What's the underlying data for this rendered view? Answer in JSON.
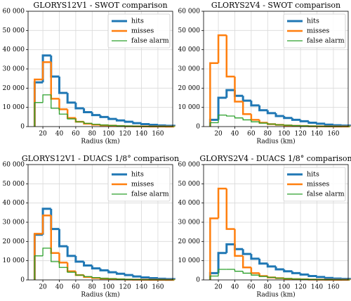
{
  "chart_data": [
    {
      "type": "histogram",
      "title": "GLORYS12V1 - SWOT comparison",
      "xlabel": "Radius (km)",
      "bins": [
        10,
        20,
        30,
        40,
        50,
        60,
        70,
        80,
        90,
        100,
        110,
        120,
        130,
        140,
        150,
        160,
        170,
        180
      ],
      "series": [
        {
          "name": "hits",
          "color": "#1f77b4",
          "values": [
            23000,
            37000,
            26000,
            17500,
            12500,
            9500,
            7500,
            6000,
            5000,
            4000,
            3200,
            2500,
            1800,
            1300,
            900,
            600,
            400
          ]
        },
        {
          "name": "misses",
          "color": "#ff7f0e",
          "values": [
            24500,
            33500,
            14500,
            9000,
            4500,
            2500,
            1500,
            1000,
            700,
            500,
            300,
            200,
            150,
            100,
            50,
            30,
            20
          ]
        },
        {
          "name": "false alarm",
          "color": "#2ca02c",
          "values": [
            12500,
            16500,
            9500,
            6500,
            4000,
            2500,
            1700,
            1200,
            800,
            600,
            400,
            300,
            200,
            150,
            100,
            60,
            40
          ]
        }
      ],
      "xlim": [
        2,
        178
      ],
      "xticks": [
        20,
        40,
        60,
        80,
        100,
        120,
        140,
        160
      ],
      "ylim": [
        0,
        60000
      ],
      "yticks": [
        0,
        {
          "value": 10000,
          "label": "10 000"
        },
        {
          "value": 20000,
          "label": "20 000"
        },
        {
          "value": 30000,
          "label": "30 000"
        },
        {
          "value": 40000,
          "label": "40 000"
        },
        {
          "value": 50000,
          "label": "50 000"
        },
        {
          "value": 60000,
          "label": "60 000"
        }
      ],
      "grid": true,
      "legend": "upper right"
    },
    {
      "type": "histogram",
      "title": "GLORYS2V4 - SWOT comparison",
      "xlabel": "Radius (km)",
      "bins": [
        10,
        20,
        30,
        40,
        50,
        60,
        70,
        80,
        90,
        100,
        110,
        120,
        130,
        140,
        150,
        160,
        170,
        180
      ],
      "series": [
        {
          "name": "hits",
          "color": "#1f77b4",
          "values": [
            3500,
            15000,
            19000,
            16000,
            13500,
            11000,
            8500,
            7000,
            5500,
            4500,
            3500,
            2800,
            2000,
            1500,
            1000,
            700,
            500
          ]
        },
        {
          "name": "misses",
          "color": "#ff7f0e",
          "values": [
            33000,
            47500,
            26000,
            13000,
            6500,
            3500,
            2000,
            1300,
            900,
            600,
            400,
            300,
            200,
            150,
            100,
            60,
            40
          ]
        },
        {
          "name": "false alarm",
          "color": "#2ca02c",
          "values": [
            2000,
            6000,
            5500,
            4500,
            3500,
            2500,
            1800,
            1300,
            900,
            700,
            500,
            350,
            250,
            180,
            120,
            80,
            50
          ]
        }
      ],
      "xlim": [
        2,
        178
      ],
      "xticks": [
        20,
        40,
        60,
        80,
        100,
        120,
        140,
        160
      ],
      "ylim": [
        0,
        60000
      ],
      "yticks": [
        0,
        {
          "value": 10000,
          "label": "10 000"
        },
        {
          "value": 20000,
          "label": "20 000"
        },
        {
          "value": 30000,
          "label": "30 000"
        },
        {
          "value": 40000,
          "label": "40 000"
        },
        {
          "value": 50000,
          "label": "50 000"
        },
        {
          "value": 60000,
          "label": "60 000"
        }
      ],
      "grid": true,
      "legend": "upper right"
    },
    {
      "type": "histogram",
      "title": "GLORYS12V1 - DUACS 1/8° comparison",
      "xlabel": "Radius (km)",
      "bins": [
        10,
        20,
        30,
        40,
        50,
        60,
        70,
        80,
        90,
        100,
        110,
        120,
        130,
        140,
        150,
        160,
        170,
        180
      ],
      "series": [
        {
          "name": "hits",
          "color": "#1f77b4",
          "values": [
            23500,
            37000,
            26500,
            17500,
            12500,
            9500,
            7500,
            6000,
            5000,
            4000,
            3200,
            2500,
            1800,
            1300,
            900,
            600,
            400
          ]
        },
        {
          "name": "misses",
          "color": "#ff7f0e",
          "values": [
            24000,
            33500,
            14000,
            9000,
            4500,
            2500,
            1500,
            1000,
            700,
            500,
            300,
            200,
            150,
            100,
            50,
            30,
            20
          ]
        },
        {
          "name": "false alarm",
          "color": "#2ca02c",
          "values": [
            12500,
            16500,
            9500,
            6500,
            4000,
            2500,
            1700,
            1200,
            800,
            600,
            400,
            300,
            200,
            150,
            100,
            60,
            40
          ]
        }
      ],
      "xlim": [
        2,
        178
      ],
      "xticks": [
        20,
        40,
        60,
        80,
        100,
        120,
        140,
        160
      ],
      "ylim": [
        0,
        60000
      ],
      "yticks": [
        0,
        {
          "value": 10000,
          "label": "10 000"
        },
        {
          "value": 20000,
          "label": "20 000"
        },
        {
          "value": 30000,
          "label": "30 000"
        },
        {
          "value": 40000,
          "label": "40 000"
        },
        {
          "value": 50000,
          "label": "50 000"
        },
        {
          "value": 60000,
          "label": "60 000"
        }
      ],
      "grid": true,
      "legend": "upper right"
    },
    {
      "type": "histogram",
      "title": "GLORYS2V4 - DUACS 1/8° comparison",
      "xlabel": "Radius (km)",
      "bins": [
        10,
        20,
        30,
        40,
        50,
        60,
        70,
        80,
        90,
        100,
        110,
        120,
        130,
        140,
        150,
        160,
        170,
        180
      ],
      "series": [
        {
          "name": "hits",
          "color": "#1f77b4",
          "values": [
            3500,
            14000,
            18500,
            16000,
            13500,
            11000,
            8500,
            7000,
            5500,
            4500,
            3500,
            2800,
            2000,
            1500,
            1000,
            700,
            500
          ]
        },
        {
          "name": "misses",
          "color": "#ff7f0e",
          "values": [
            32000,
            47500,
            26500,
            12500,
            6500,
            3500,
            2000,
            1300,
            900,
            600,
            400,
            300,
            200,
            150,
            100,
            60,
            40
          ]
        },
        {
          "name": "false alarm",
          "color": "#2ca02c",
          "values": [
            2000,
            5500,
            5500,
            4500,
            3500,
            2500,
            1800,
            1300,
            900,
            700,
            500,
            350,
            250,
            180,
            120,
            80,
            50
          ]
        }
      ],
      "xlim": [
        2,
        178
      ],
      "xticks": [
        20,
        40,
        60,
        80,
        100,
        120,
        140,
        160
      ],
      "ylim": [
        0,
        60000
      ],
      "yticks": [
        0,
        {
          "value": 10000,
          "label": "10 000"
        },
        {
          "value": 20000,
          "label": "20 000"
        },
        {
          "value": 30000,
          "label": "30 000"
        },
        {
          "value": 40000,
          "label": "40 000"
        },
        {
          "value": 50000,
          "label": "50 000"
        },
        {
          "value": 60000,
          "label": "60 000"
        }
      ],
      "grid": true,
      "legend": "upper right"
    }
  ]
}
